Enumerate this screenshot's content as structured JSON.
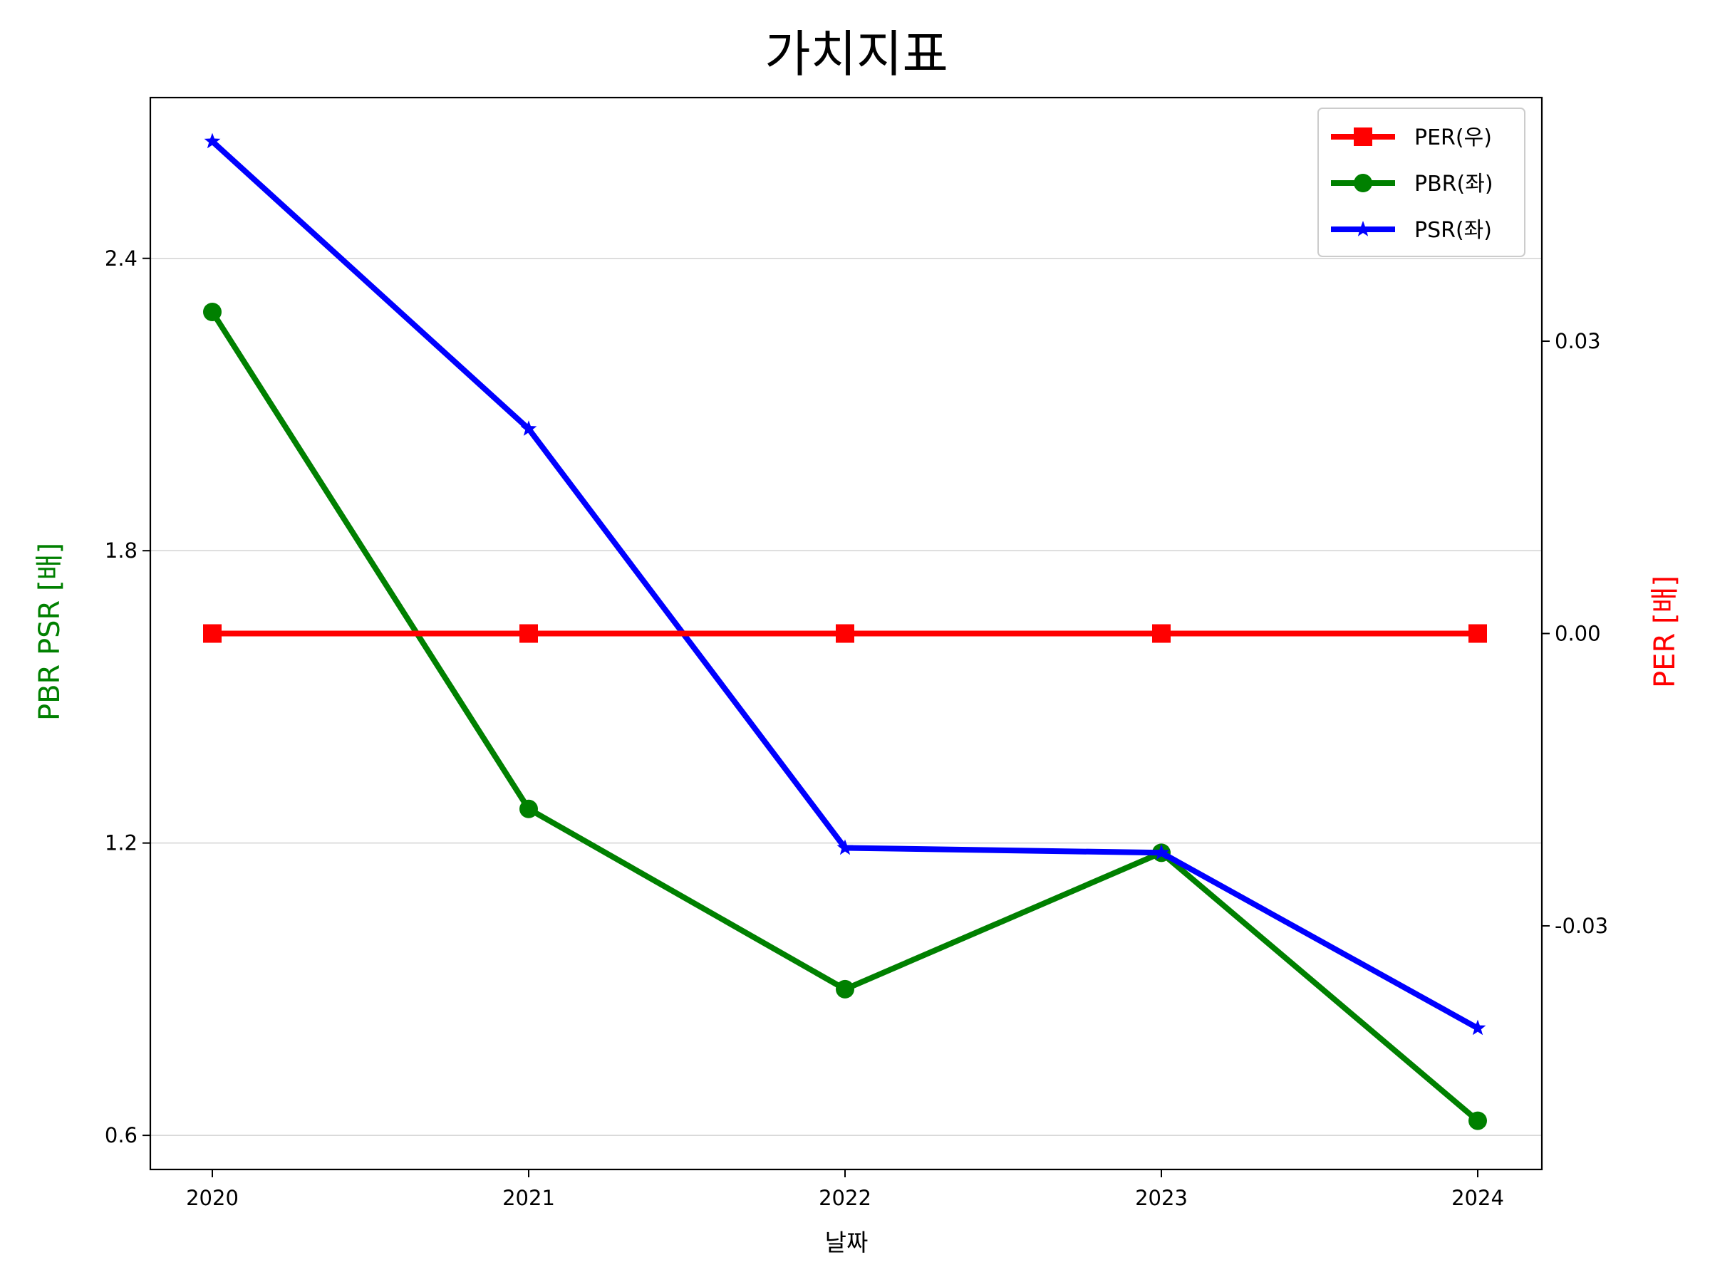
{
  "chart_data": {
    "type": "line",
    "title": "가치지표",
    "xlabel": "날짜",
    "ylabel_left": "PBR PSR [배]",
    "ylabel_right": "PER [배]",
    "categories": [
      "2020",
      "2021",
      "2022",
      "2023",
      "2024"
    ],
    "left_axis": {
      "ticks": [
        0.6,
        1.2,
        1.8,
        2.4
      ],
      "tick_labels": [
        "0.6",
        "1.2",
        "1.8",
        "2.4"
      ],
      "ylim": [
        0.53,
        2.73
      ],
      "label_color": "#008000"
    },
    "right_axis": {
      "ticks": [
        -0.03,
        0.0,
        0.03
      ],
      "tick_labels": [
        "-0.03",
        "0.00",
        "0.03"
      ],
      "ylim": [
        -0.055,
        0.055
      ],
      "label_color": "#ff0000"
    },
    "grid": "horizontal",
    "legend_position": "top-right",
    "series": [
      {
        "name": "PER(우)",
        "axis": "right",
        "color": "#ff0000",
        "marker": "square",
        "values": [
          0,
          0,
          0,
          0,
          0
        ]
      },
      {
        "name": "PBR(좌)",
        "axis": "left",
        "color": "#008000",
        "marker": "circle",
        "values": [
          2.29,
          1.27,
          0.9,
          1.18,
          0.63
        ]
      },
      {
        "name": "PSR(좌)",
        "axis": "left",
        "color": "#0000ff",
        "marker": "star",
        "values": [
          2.64,
          2.05,
          1.19,
          1.18,
          0.82
        ]
      }
    ]
  }
}
